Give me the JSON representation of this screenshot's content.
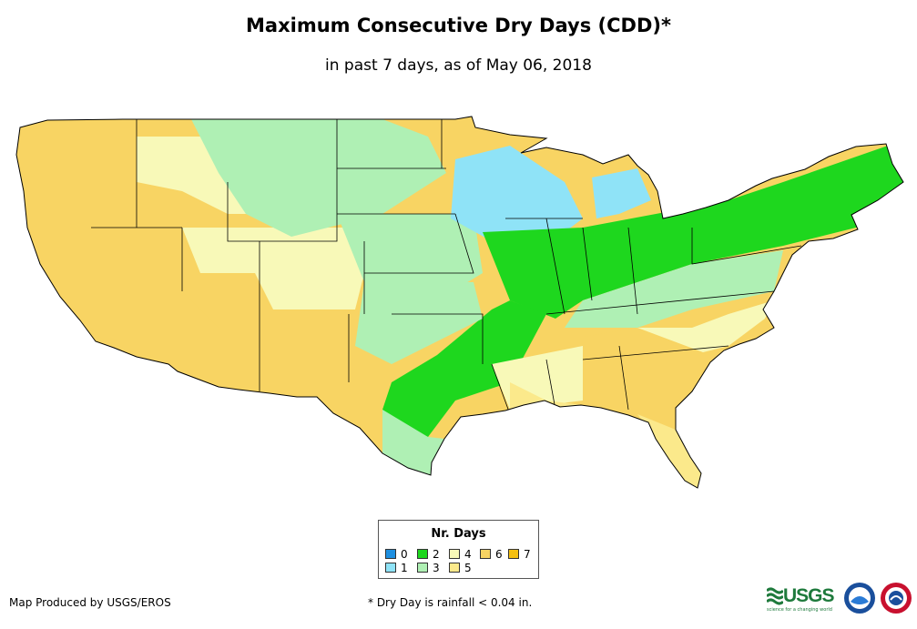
{
  "title": "Maximum Consecutive Dry Days (CDD)*",
  "subtitle": "in past 7 days, as of May 06, 2018",
  "legend": {
    "title": "Nr. Days",
    "items": [
      {
        "label": "0",
        "color": "#1e8fe0"
      },
      {
        "label": "1",
        "color": "#8fe3f7"
      },
      {
        "label": "2",
        "color": "#1ed71e"
      },
      {
        "label": "3",
        "color": "#aff0b4"
      },
      {
        "label": "4",
        "color": "#f8f9b8"
      },
      {
        "label": "5",
        "color": "#fbe98b"
      },
      {
        "label": "6",
        "color": "#f8d463"
      },
      {
        "label": "7",
        "color": "#f5c010"
      }
    ]
  },
  "credit": "Map Produced by USGS/EROS",
  "footnote": "* Dry Day is rainfall < 0.04 in.",
  "logos": {
    "usgs": "USGS",
    "usgs_tagline": "science for a changing world"
  },
  "regions": [
    {
      "name": "west-coast",
      "days": 6
    },
    {
      "name": "great-basin",
      "days": 6
    },
    {
      "name": "southwest",
      "days": 6
    },
    {
      "name": "four-corners",
      "days": 4
    },
    {
      "name": "northern-rockies",
      "days": 5
    },
    {
      "name": "northern-plains",
      "days": 3
    },
    {
      "name": "upper-midwest",
      "days": 1
    },
    {
      "name": "mississippi-valley",
      "days": 2
    },
    {
      "name": "texas-oklahoma-band",
      "days": 2
    },
    {
      "name": "ohio-valley",
      "days": 3
    },
    {
      "name": "northeast",
      "days": 2
    },
    {
      "name": "southeast",
      "days": 6
    },
    {
      "name": "gulf-coast",
      "days": 5
    },
    {
      "name": "mid-atlantic",
      "days": 4
    }
  ]
}
